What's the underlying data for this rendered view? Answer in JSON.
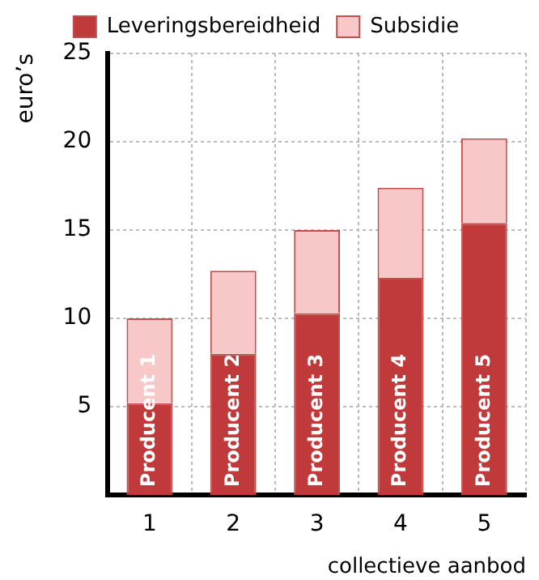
{
  "chart_data": {
    "type": "bar",
    "stacked": true,
    "xlabel": "collectieve aanbod",
    "ylabel": "euro’s",
    "categories": [
      "1",
      "2",
      "3",
      "4",
      "5"
    ],
    "series": [
      {
        "name": "Leveringsbereidheid",
        "color": "#c0393b",
        "values": [
          5.2,
          8,
          10.3,
          12.3,
          15.4
        ]
      },
      {
        "name": "Subsidie",
        "color": "#f8c8c8",
        "values": [
          4.8,
          4.7,
          4.7,
          5.1,
          4.8
        ]
      }
    ],
    "ylim": [
      0,
      25
    ],
    "yticks": [
      5,
      10,
      15,
      20,
      25
    ],
    "grid": true,
    "legend": "top",
    "annotations": [
      "Producent 1",
      "Producent 2",
      "Producent 3",
      "Producent 4",
      "Producent 5"
    ]
  }
}
